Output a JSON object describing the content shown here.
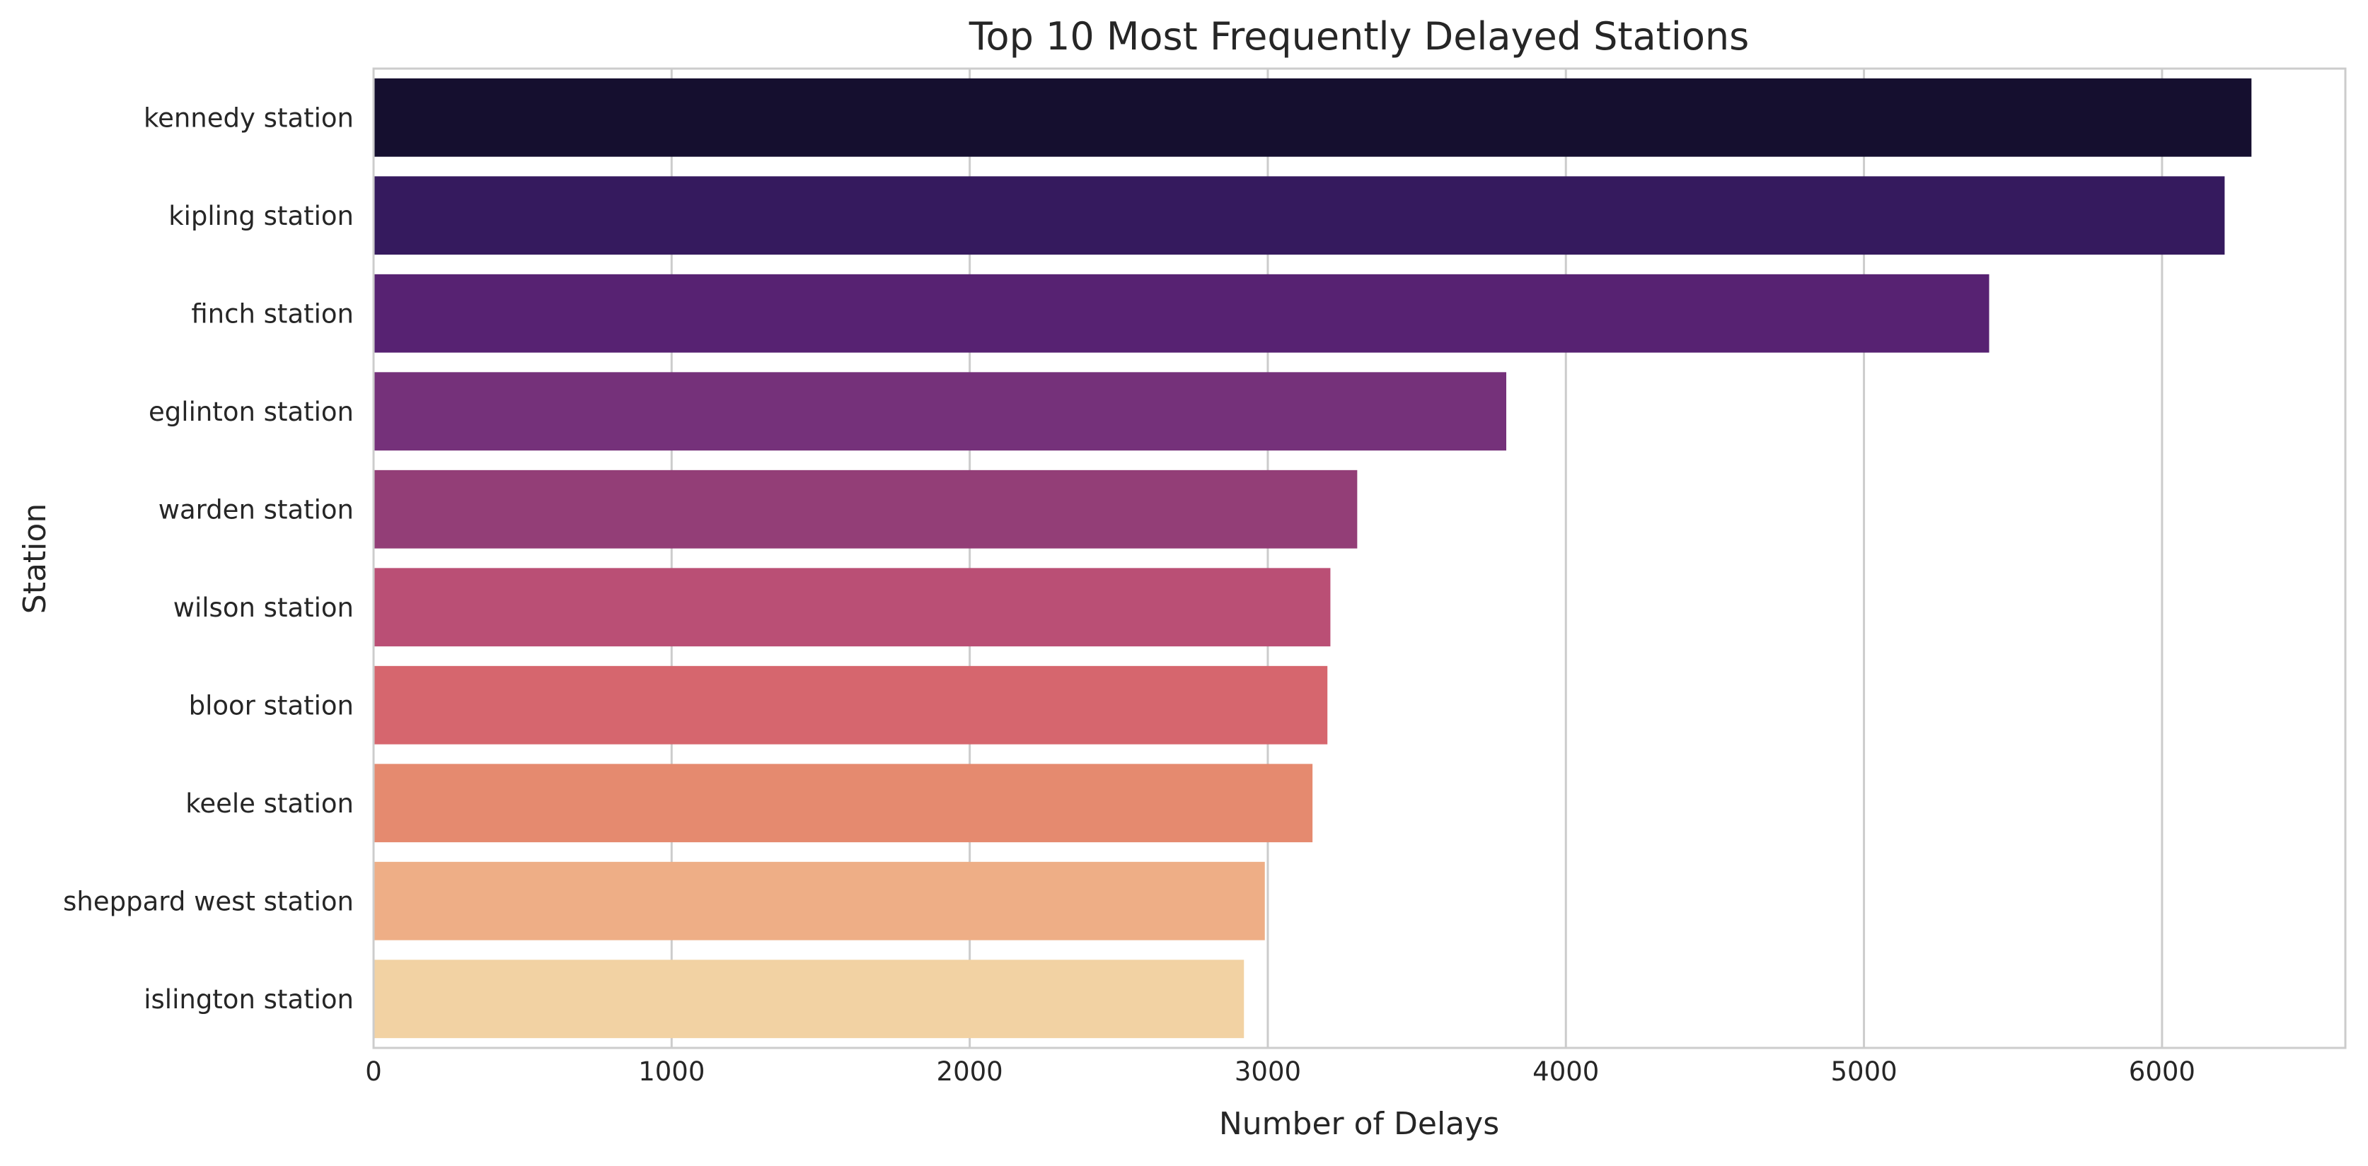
{
  "chart_data": {
    "type": "bar",
    "orientation": "horizontal",
    "title": "Top 10 Most Frequently Delayed Stations",
    "xlabel": "Number of Delays",
    "ylabel": "Station",
    "categories": [
      "kennedy station",
      "kipling station",
      "finch station",
      "eglinton station",
      "warden station",
      "wilson station",
      "bloor station",
      "keele station",
      "sheppard west station",
      "islington station"
    ],
    "values": [
      6300,
      6210,
      5420,
      3800,
      3300,
      3210,
      3200,
      3150,
      2990,
      2920
    ],
    "colors": [
      "#150f2f",
      "#351a5e",
      "#572272",
      "#75317a",
      "#933e77",
      "#ba4f75",
      "#d6666e",
      "#e58a6f",
      "#eeae86",
      "#f2d2a3"
    ],
    "xlim": [
      0,
      6615
    ],
    "xticks": [
      0,
      1000,
      2000,
      3000,
      4000,
      5000,
      6000
    ],
    "xtick_labels": [
      "0",
      "1000",
      "2000",
      "3000",
      "4000",
      "5000",
      "6000"
    ],
    "grid": "vertical",
    "legend": "none"
  }
}
